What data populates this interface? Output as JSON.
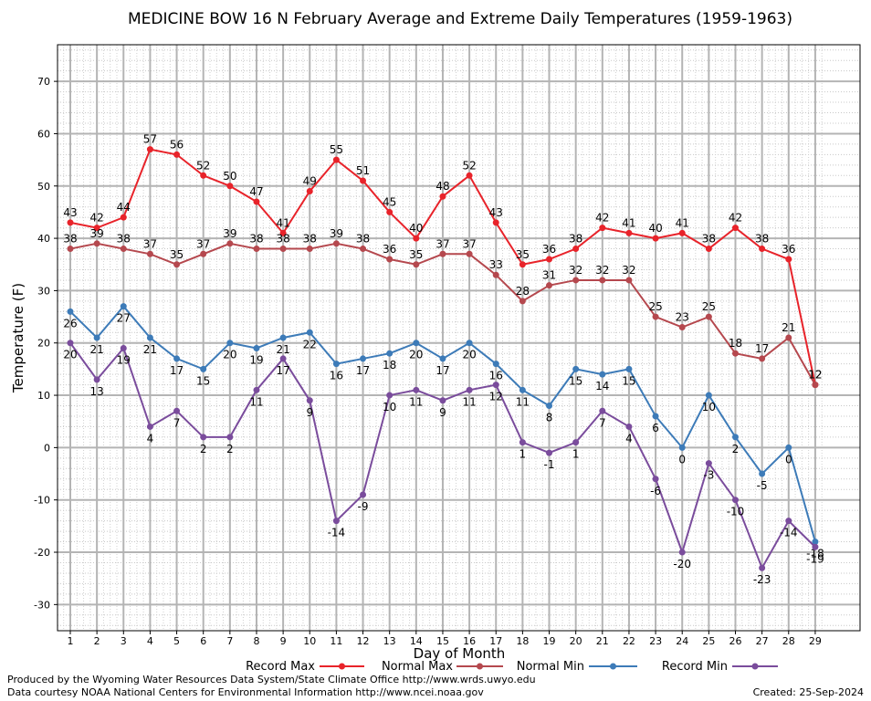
{
  "chart_data": {
    "type": "line",
    "title": "MEDICINE BOW 16 N February Average and Extreme Daily Temperatures (1959-1963)",
    "xlabel": "Day of Month",
    "ylabel": "Temperature (F)",
    "ylim": [
      -35,
      77
    ],
    "yticks": [
      -30,
      -20,
      -10,
      0,
      10,
      20,
      30,
      40,
      50,
      60,
      70
    ],
    "x": [
      1,
      2,
      3,
      4,
      5,
      6,
      7,
      8,
      9,
      10,
      11,
      12,
      13,
      14,
      15,
      16,
      17,
      18,
      19,
      20,
      21,
      22,
      23,
      24,
      25,
      26,
      27,
      28,
      29
    ],
    "grid": true,
    "legend_position": "bottom",
    "series": [
      {
        "name": "Record Max",
        "color": "#e8232a",
        "values": [
          43,
          42,
          44,
          57,
          56,
          52,
          50,
          47,
          41,
          49,
          55,
          51,
          45,
          40,
          48,
          52,
          43,
          35,
          36,
          38,
          42,
          41,
          40,
          41,
          38,
          42,
          38,
          36,
          12
        ]
      },
      {
        "name": "Normal Max",
        "color": "#b5484e",
        "values": [
          38,
          39,
          38,
          37,
          35,
          37,
          39,
          38,
          38,
          38,
          39,
          38,
          36,
          35,
          37,
          37,
          33,
          28,
          31,
          32,
          32,
          32,
          25,
          23,
          25,
          18,
          17,
          21,
          12
        ]
      },
      {
        "name": "Normal Min",
        "color": "#3d7bb8",
        "values": [
          26,
          21,
          27,
          21,
          17,
          15,
          20,
          19,
          21,
          22,
          16,
          17,
          18,
          20,
          17,
          20,
          16,
          11,
          8,
          15,
          14,
          15,
          6,
          0,
          10,
          2,
          -5,
          0,
          -18
        ]
      },
      {
        "name": "Record Min",
        "color": "#7a4c9c",
        "values": [
          20,
          13,
          19,
          4,
          7,
          2,
          2,
          11,
          17,
          9,
          -14,
          -9,
          10,
          11,
          9,
          11,
          12,
          1,
          -1,
          1,
          7,
          4,
          -6,
          -20,
          -3,
          -10,
          -23,
          -14,
          -19
        ]
      }
    ]
  },
  "footer": {
    "line1": "Produced by the Wyoming Water Resources Data System/State Climate Office http://www.wrds.uwyo.edu",
    "line2": "Data courtesy NOAA National Centers for Environmental Information http://www.ncei.noaa.gov",
    "created": "Created:  25-Sep-2024"
  }
}
